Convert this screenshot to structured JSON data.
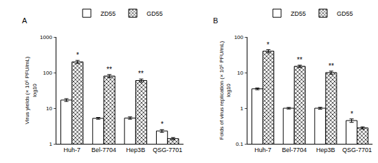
{
  "chart_data": [
    {
      "type": "bar",
      "title": "A",
      "y_label": "Virus yields (× 10⁶ PFU/mL)",
      "y_sublabel": "log10",
      "categories": [
        "Huh-7",
        "Bel-7704",
        "Hep3B",
        "QSG-7701"
      ],
      "series": [
        {
          "name": "ZD55",
          "color": "#ffffff",
          "values": [
            17,
            5.2,
            5.3,
            2.3
          ],
          "errors": [
            1.5,
            0.3,
            0.4,
            0.2
          ]
        },
        {
          "name": "GD55",
          "color": "#333333",
          "marker": "checkered",
          "values": [
            200,
            80,
            60,
            1.4
          ],
          "errors": [
            20,
            8,
            6,
            0.1
          ]
        }
      ],
      "annotations": [
        {
          "category": "Huh-7",
          "series": "GD55",
          "text": "*"
        },
        {
          "category": "Bel-7704",
          "series": "GD55",
          "text": "**"
        },
        {
          "category": "Hep3B",
          "series": "GD55",
          "text": "**"
        },
        {
          "category": "QSG-7701",
          "series": "ZD55",
          "text": "*"
        }
      ],
      "log": "y",
      "ylim": [
        1,
        1000
      ],
      "yticks": [
        1,
        10,
        100,
        1000
      ]
    },
    {
      "type": "bar",
      "title": "B",
      "y_label": "Folds of virus replication (× 10⁶ PFU/mL)",
      "y_sublabel": "log10",
      "categories": [
        "Huh-7",
        "Bel-7704",
        "Hep3B",
        "QSG-7701"
      ],
      "series": [
        {
          "name": "ZD55",
          "color": "#ffffff",
          "values": [
            3.5,
            1.0,
            1.0,
            0.45
          ],
          "errors": [
            0.2,
            0.05,
            0.06,
            0.05
          ]
        },
        {
          "name": "GD55",
          "color": "#333333",
          "marker": "checkered",
          "values": [
            40,
            15,
            10,
            0.28
          ],
          "errors": [
            4,
            1.2,
            1,
            0.02
          ]
        }
      ],
      "annotations": [
        {
          "category": "Huh-7",
          "series": "GD55",
          "text": "*"
        },
        {
          "category": "Bel-7704",
          "series": "GD55",
          "text": "**"
        },
        {
          "category": "Hep3B",
          "series": "GD55",
          "text": "**"
        },
        {
          "category": "QSG-7701",
          "series": "ZD55",
          "text": "*"
        }
      ],
      "log": "y",
      "ylim": [
        0.1,
        100
      ],
      "yticks": [
        0.1,
        1,
        10,
        100
      ]
    }
  ]
}
